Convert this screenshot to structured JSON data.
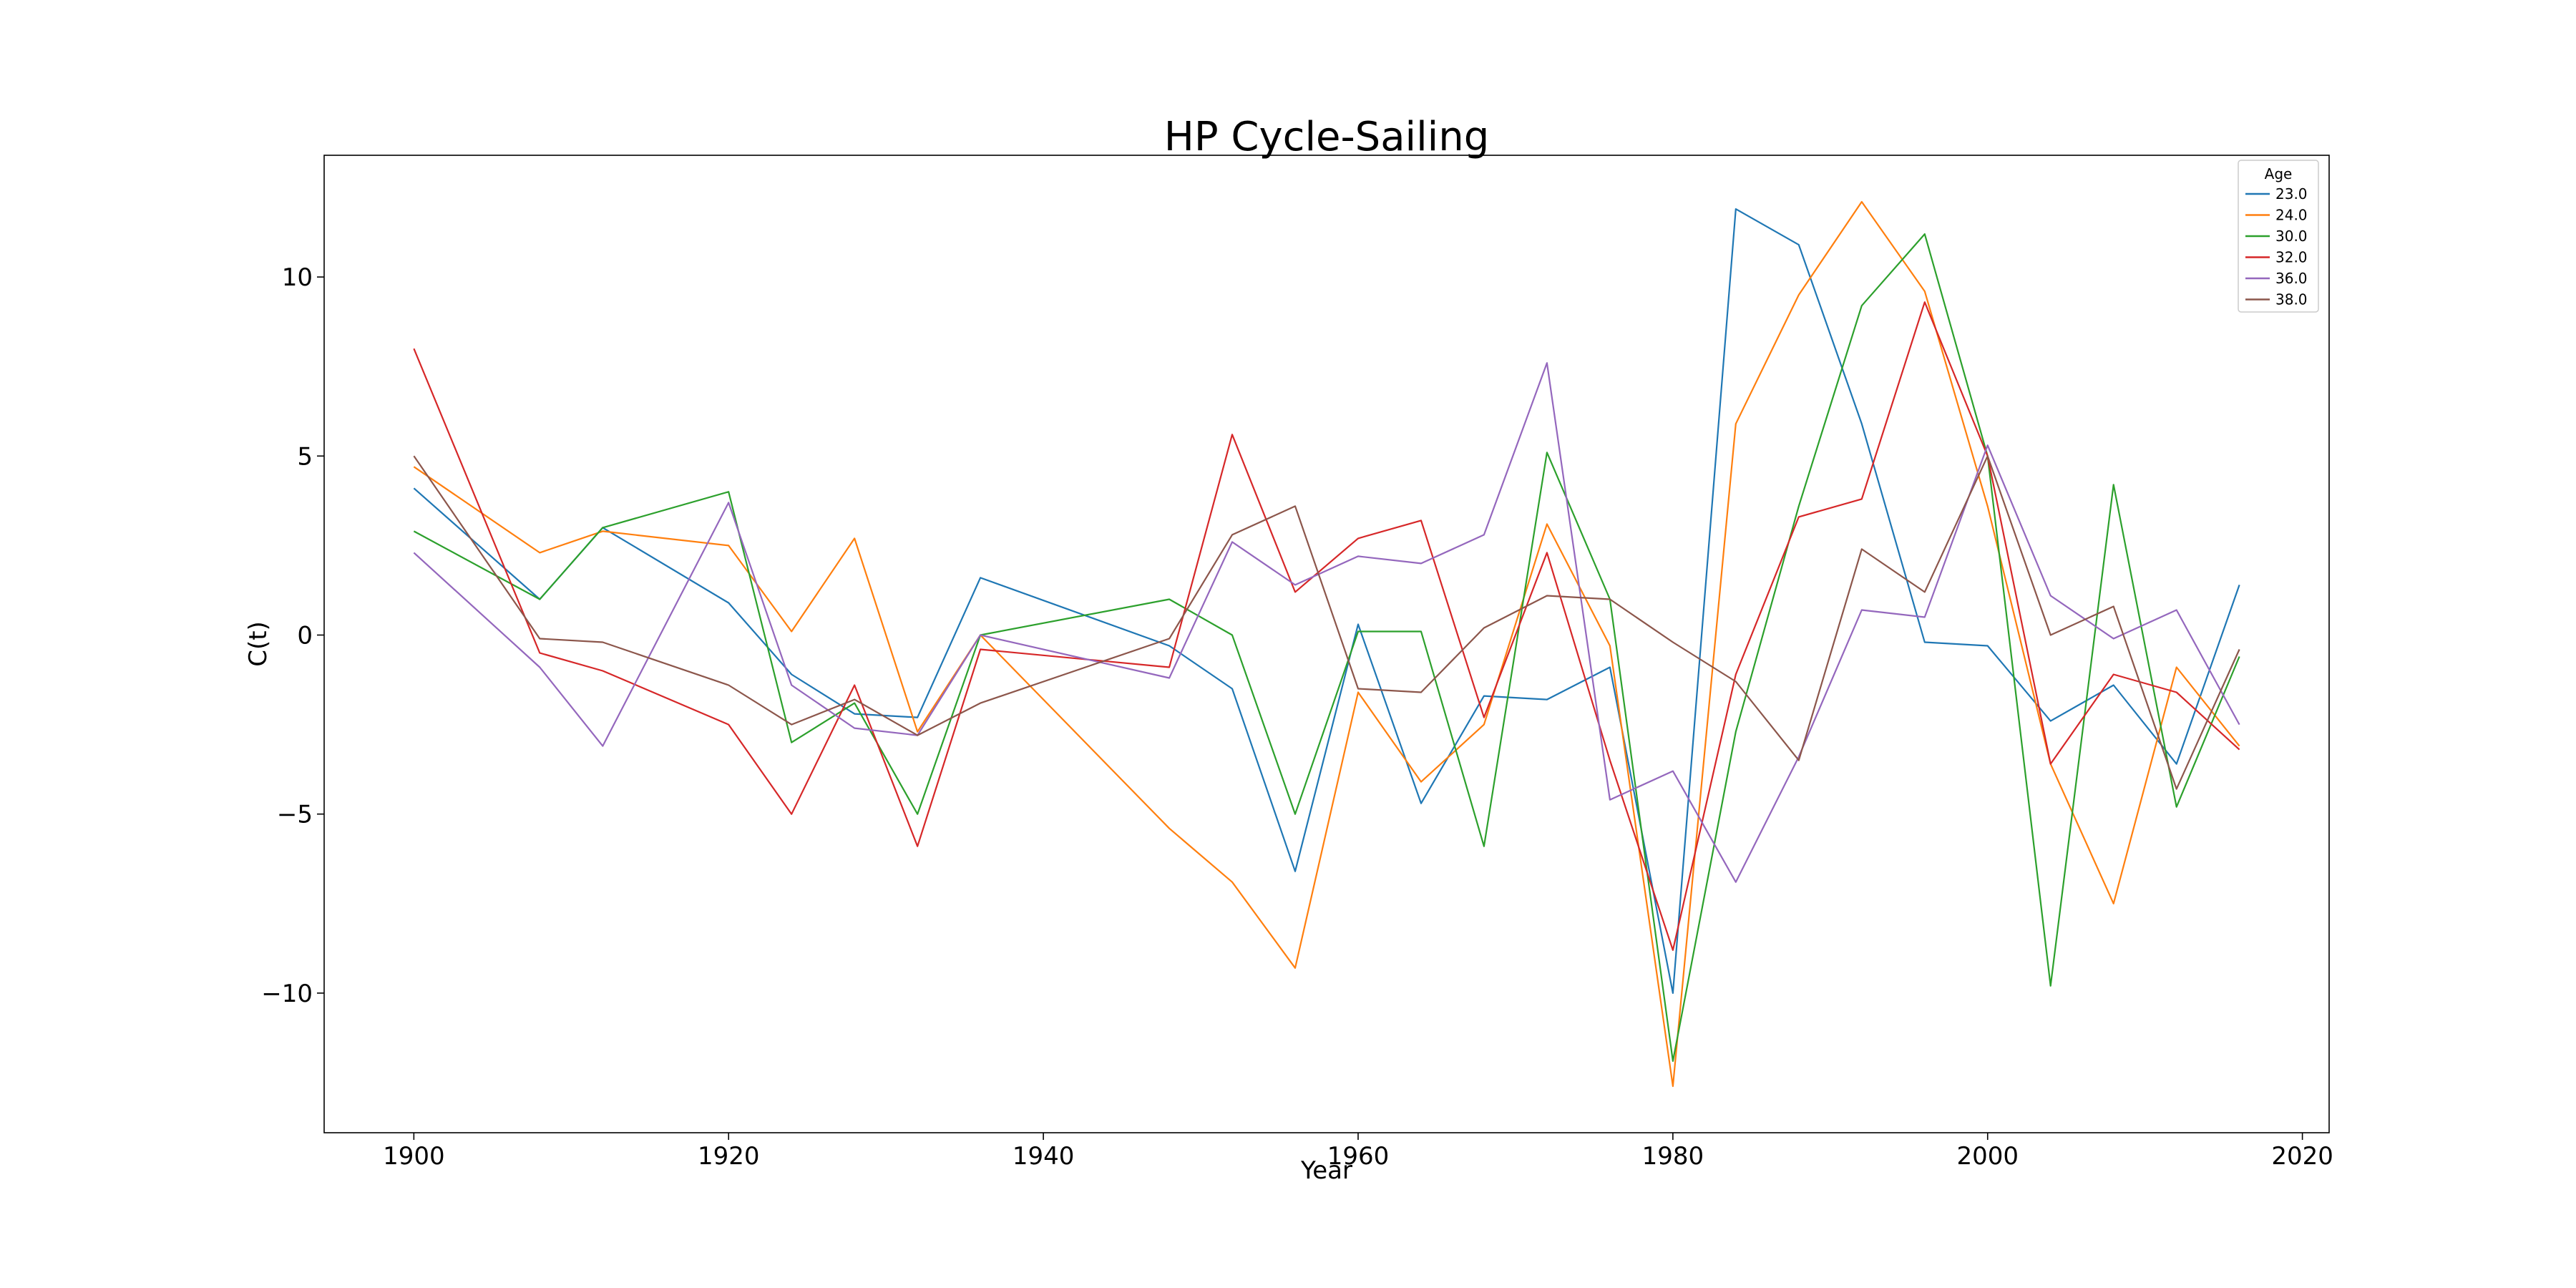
{
  "chart_data": {
    "type": "line",
    "title": "HP Cycle-Sailing",
    "xlabel": "Year",
    "ylabel": "C(t)",
    "xlim": [
      1894.3,
      2021.7
    ],
    "ylim": [
      -13.9,
      13.4
    ],
    "xticks": [
      1900,
      1920,
      1940,
      1960,
      1980,
      2000,
      2020
    ],
    "yticks": [
      -10,
      -5,
      0,
      5,
      10
    ],
    "ytick_labels": [
      "−10",
      "−5",
      "0",
      "5",
      "10"
    ],
    "grid": false,
    "legend": {
      "title": "Age",
      "position": "top-right"
    },
    "series": [
      {
        "name": "23.0",
        "color": "#1f77b4",
        "x": [
          1900,
          1908,
          1912,
          1920,
          1924,
          1928,
          1932,
          1936,
          1948,
          1952,
          1956,
          1960,
          1964,
          1968,
          1972,
          1976,
          1980,
          1984,
          1988,
          1992,
          1996,
          2000,
          2004,
          2008,
          2012,
          2016
        ],
        "y": [
          4.1,
          1.0,
          3.0,
          0.9,
          -1.1,
          -2.2,
          -2.3,
          1.6,
          -0.3,
          -1.5,
          -6.6,
          0.3,
          -4.7,
          -1.7,
          -1.8,
          -0.9,
          -10.0,
          11.9,
          10.9,
          5.9,
          -0.2,
          -0.3,
          -2.4,
          -1.4,
          -3.6,
          1.4
        ]
      },
      {
        "name": "24.0",
        "color": "#ff7f0e",
        "x": [
          1900,
          1908,
          1912,
          1920,
          1924,
          1928,
          1932,
          1936,
          1948,
          1952,
          1956,
          1960,
          1964,
          1968,
          1972,
          1976,
          1980,
          1984,
          1988,
          1992,
          1996,
          2000,
          2004,
          2008,
          2012,
          2016
        ],
        "y": [
          4.7,
          2.3,
          2.9,
          2.5,
          0.1,
          2.7,
          -2.7,
          0.0,
          -5.4,
          -6.9,
          -9.3,
          -1.6,
          -4.1,
          -2.5,
          3.1,
          -0.3,
          -12.6,
          5.9,
          9.5,
          12.1,
          9.6,
          3.6,
          -3.6,
          -7.5,
          -0.9,
          -3.1
        ]
      },
      {
        "name": "30.0",
        "color": "#2ca02c",
        "x": [
          1900,
          1908,
          1912,
          1920,
          1924,
          1928,
          1932,
          1936,
          1948,
          1952,
          1956,
          1960,
          1964,
          1968,
          1972,
          1976,
          1980,
          1984,
          1988,
          1992,
          1996,
          2000,
          2004,
          2008,
          2012,
          2016
        ],
        "y": [
          2.9,
          1.0,
          3.0,
          4.0,
          -3.0,
          -1.9,
          -5.0,
          0.0,
          1.0,
          0.0,
          -5.0,
          0.1,
          0.1,
          -5.9,
          5.1,
          1.0,
          -11.9,
          -2.7,
          3.6,
          9.2,
          11.2,
          5.0,
          -9.8,
          4.2,
          -4.8,
          -0.6
        ]
      },
      {
        "name": "32.0",
        "color": "#d62728",
        "x": [
          1900,
          1908,
          1912,
          1920,
          1924,
          1928,
          1932,
          1936,
          1948,
          1952,
          1956,
          1960,
          1964,
          1968,
          1972,
          1976,
          1980,
          1984,
          1988,
          1992,
          1996,
          2000,
          2004,
          2008,
          2012,
          2016
        ],
        "y": [
          8.0,
          -0.5,
          -1.0,
          -2.5,
          -5.0,
          -1.4,
          -5.9,
          -0.4,
          -0.9,
          5.6,
          1.2,
          2.7,
          3.2,
          -2.3,
          2.3,
          -3.5,
          -8.8,
          -1.1,
          3.3,
          3.8,
          9.3,
          5.0,
          -3.6,
          -1.1,
          -1.6,
          -3.2
        ]
      },
      {
        "name": "36.0",
        "color": "#9467bd",
        "x": [
          1900,
          1908,
          1912,
          1920,
          1924,
          1928,
          1932,
          1936,
          1948,
          1952,
          1956,
          1960,
          1964,
          1968,
          1972,
          1976,
          1980,
          1984,
          1988,
          1992,
          1996,
          2000,
          2004,
          2008,
          2012,
          2016
        ],
        "y": [
          2.3,
          -0.9,
          -3.1,
          3.7,
          -1.4,
          -2.6,
          -2.8,
          0.0,
          -1.2,
          2.6,
          1.4,
          2.2,
          2.0,
          2.8,
          7.6,
          -4.6,
          -3.8,
          -6.9,
          -3.4,
          0.7,
          0.5,
          5.3,
          1.1,
          -0.1,
          0.7,
          -2.5
        ]
      },
      {
        "name": "38.0",
        "color": "#8c564b",
        "x": [
          1900,
          1908,
          1912,
          1920,
          1924,
          1928,
          1932,
          1936,
          1948,
          1952,
          1956,
          1960,
          1964,
          1968,
          1972,
          1976,
          1980,
          1984,
          1988,
          1992,
          1996,
          2000,
          2004,
          2008,
          2012,
          2016
        ],
        "y": [
          5.0,
          -0.1,
          -0.2,
          -1.4,
          -2.5,
          -1.8,
          -2.8,
          -1.9,
          -0.1,
          2.8,
          3.6,
          -1.5,
          -1.6,
          0.2,
          1.1,
          1.0,
          -0.2,
          -1.3,
          -3.5,
          2.4,
          1.2,
          5.0,
          -0.0,
          0.8,
          -4.3,
          -0.4
        ]
      }
    ]
  }
}
